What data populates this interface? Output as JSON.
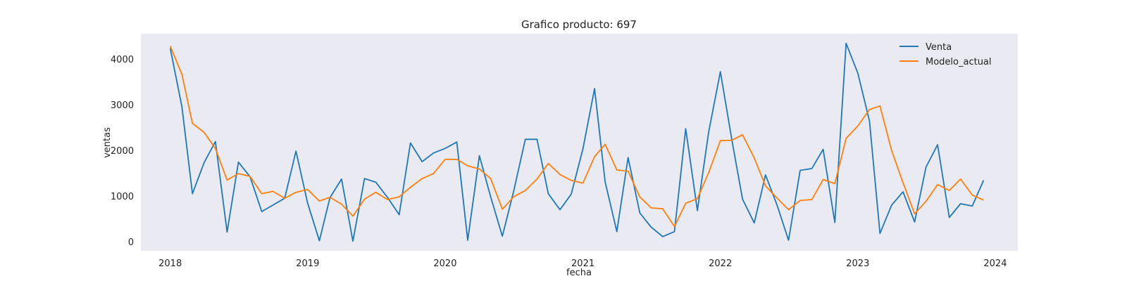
{
  "chart_data": {
    "type": "line",
    "title": "Grafico producto: 697",
    "xlabel": "fecha",
    "ylabel": "ventas",
    "x_ticks": [
      "2018",
      "2019",
      "2020",
      "2021",
      "2022",
      "2023",
      "2024"
    ],
    "y_ticks": [
      "0",
      "1000",
      "2000",
      "3000",
      "4000"
    ],
    "ylim": [
      -200,
      4550
    ],
    "xlim": [
      "2017-10-15",
      "2024-03-01"
    ],
    "grid": false,
    "legend_position": "top-right",
    "background_color": "#eaeaf2",
    "x": [
      "2018-01",
      "2018-02",
      "2018-03",
      "2018-04",
      "2018-05",
      "2018-06",
      "2018-07",
      "2018-08",
      "2018-09",
      "2018-10",
      "2018-11",
      "2018-12",
      "2019-01",
      "2019-02",
      "2019-03",
      "2019-04",
      "2019-05",
      "2019-06",
      "2019-07",
      "2019-08",
      "2019-09",
      "2019-10",
      "2019-11",
      "2019-12",
      "2020-01",
      "2020-02",
      "2020-03",
      "2020-04",
      "2020-05",
      "2020-06",
      "2020-07",
      "2020-08",
      "2020-09",
      "2020-10",
      "2020-11",
      "2020-12",
      "2021-01",
      "2021-02",
      "2021-03",
      "2021-04",
      "2021-05",
      "2021-06",
      "2021-07",
      "2021-08",
      "2021-09",
      "2021-10",
      "2021-11",
      "2021-12",
      "2022-01",
      "2022-02",
      "2022-03",
      "2022-04",
      "2022-05",
      "2022-06",
      "2022-07",
      "2022-08",
      "2022-09",
      "2022-10",
      "2022-11",
      "2022-12",
      "2023-01",
      "2023-02",
      "2023-03",
      "2023-04",
      "2023-05",
      "2023-06",
      "2023-07",
      "2023-08",
      "2023-09",
      "2023-10",
      "2023-11",
      "2023-12"
    ],
    "series": [
      {
        "name": "Venta",
        "color": "#1f77b4",
        "values": [
          4230,
          2950,
          1050,
          1730,
          2190,
          210,
          1740,
          1420,
          660,
          800,
          950,
          1980,
          840,
          20,
          960,
          1370,
          10,
          1380,
          1300,
          970,
          590,
          2160,
          1750,
          1940,
          2040,
          2180,
          30,
          1880,
          980,
          120,
          1100,
          2240,
          2240,
          1050,
          700,
          1040,
          2030,
          3350,
          1310,
          220,
          1840,
          630,
          320,
          110,
          220,
          2470,
          680,
          2400,
          3720,
          2200,
          930,
          410,
          1460,
          790,
          30,
          1560,
          1600,
          2020,
          420,
          4340,
          3690,
          2640,
          180,
          800,
          1090,
          430,
          1630,
          2120,
          530,
          830,
          780,
          1340
        ]
      },
      {
        "name": "Modelo_actual",
        "color": "#ff7f0e",
        "values": [
          4280,
          3660,
          2590,
          2390,
          2040,
          1350,
          1490,
          1430,
          1050,
          1100,
          950,
          1080,
          1140,
          890,
          970,
          820,
          560,
          930,
          1080,
          920,
          980,
          1190,
          1380,
          1490,
          1800,
          1800,
          1660,
          1590,
          1380,
          710,
          980,
          1120,
          1370,
          1710,
          1470,
          1340,
          1280,
          1860,
          2130,
          1570,
          1540,
          980,
          740,
          720,
          330,
          840,
          940,
          1510,
          2210,
          2220,
          2340,
          1830,
          1220,
          950,
          700,
          900,
          920,
          1360,
          1270,
          2260,
          2530,
          2890,
          2970,
          1990,
          1290,
          610,
          880,
          1250,
          1120,
          1370,
          1020,
          910
        ]
      }
    ]
  }
}
